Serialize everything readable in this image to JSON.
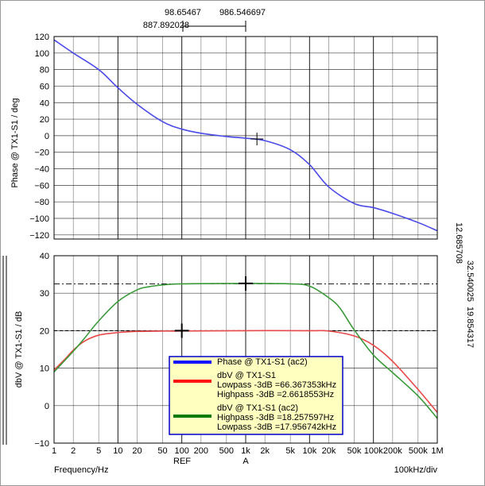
{
  "header": {
    "cursor_ref_x": "98.65467",
    "cursor_a_x": "986.546697",
    "cursor_delta": "887.892028"
  },
  "side": {
    "phase_readout": "12.685708",
    "db_readout_a": "32.540025",
    "db_readout_b": "19.854317"
  },
  "footer": {
    "xlabel": "Frequency/Hz",
    "ref_label": "REF",
    "a_label": "A",
    "div_label": "100kHz/div"
  },
  "legend": {
    "items": [
      {
        "lines": [
          "Phase @ TX1-S1 (ac2)"
        ],
        "color": "#1414ff"
      },
      {
        "lines": [
          "dbV @ TX1-S1",
          "Lowpass -3dB =66.367353kHz",
          "Highpass -3dB =2.6618553Hz"
        ],
        "color": "#ff1414"
      },
      {
        "lines": [
          "dbV @ TX1-S1 (ac2)",
          "Highpass -3dB =18.257597Hz",
          "Lowpass -3dB =17.956742kHz"
        ],
        "color": "#0a7a0a"
      }
    ],
    "border_color": "#0000cc",
    "bg_color": "#ffffc0"
  },
  "chart_data": [
    {
      "type": "line",
      "ylabel": "Phase @ TX1-S1 / deg",
      "xscale": "log",
      "xlim": [
        1,
        1000000
      ],
      "ylim": [
        -125,
        120
      ],
      "yticks": [
        120,
        100,
        80,
        60,
        40,
        20,
        0,
        -20,
        -40,
        -60,
        -80,
        -100,
        -120
      ],
      "grid": true,
      "series": [
        {
          "color": "#4a4ae8",
          "x": [
            1,
            2,
            5,
            10,
            20,
            50,
            100,
            200,
            500,
            1000,
            2000,
            5000,
            10000,
            20000,
            50000,
            100000,
            200000,
            500000,
            1000000
          ],
          "y": [
            116,
            100,
            80,
            58,
            38,
            17,
            8,
            3,
            -1,
            -3,
            -6,
            -17,
            -35,
            -62,
            -82,
            -87,
            -94,
            -105,
            -115
          ]
        }
      ],
      "cursor": {
        "x": 1500,
        "y": -4
      }
    },
    {
      "type": "line",
      "ylabel": "dbV @ TX1-S1 / dB",
      "xscale": "log",
      "xlim": [
        1,
        1000000
      ],
      "ylim": [
        -10,
        40
      ],
      "yticks": [
        40,
        30,
        20,
        10,
        0,
        -10
      ],
      "xticks": [
        "1",
        "2",
        "5",
        "10",
        "20",
        "50",
        "100",
        "200",
        "500",
        "1k",
        "2k",
        "5k",
        "10k",
        "20k",
        "50k",
        "100k",
        "200k",
        "500k",
        "1M"
      ],
      "grid": true,
      "series": [
        {
          "name": "dbV @ TX1-S1",
          "color": "#e84848",
          "x": [
            1,
            1.5,
            2,
            3,
            5,
            10,
            20,
            50,
            100,
            1000,
            10000,
            20000,
            50000,
            100000,
            200000,
            500000,
            1000000
          ],
          "y": [
            9.5,
            12.5,
            14.8,
            17.2,
            18.8,
            19.5,
            19.8,
            19.9,
            19.9,
            20.0,
            20.0,
            19.9,
            18.6,
            16.1,
            11.8,
            4.3,
            -1.8
          ]
        },
        {
          "name": "dbV @ TX1-S1 (ac2)",
          "color": "#3a9a3a",
          "x": [
            1,
            2,
            3,
            5,
            10,
            20,
            30,
            50,
            100,
            1000,
            5000,
            10000,
            20000,
            30000,
            50000,
            100000,
            200000,
            500000,
            1000000
          ],
          "y": [
            9.0,
            14.5,
            18.0,
            22.6,
            27.8,
            30.9,
            31.7,
            32.2,
            32.5,
            32.6,
            32.5,
            31.9,
            28.8,
            26.0,
            20.2,
            13.5,
            8.8,
            2.6,
            -3.4
          ]
        }
      ],
      "ref_lines": [
        32.5,
        20
      ],
      "cursors": [
        {
          "x": 100,
          "y": 20
        },
        {
          "x": 1000,
          "y": 32.6
        }
      ]
    }
  ]
}
